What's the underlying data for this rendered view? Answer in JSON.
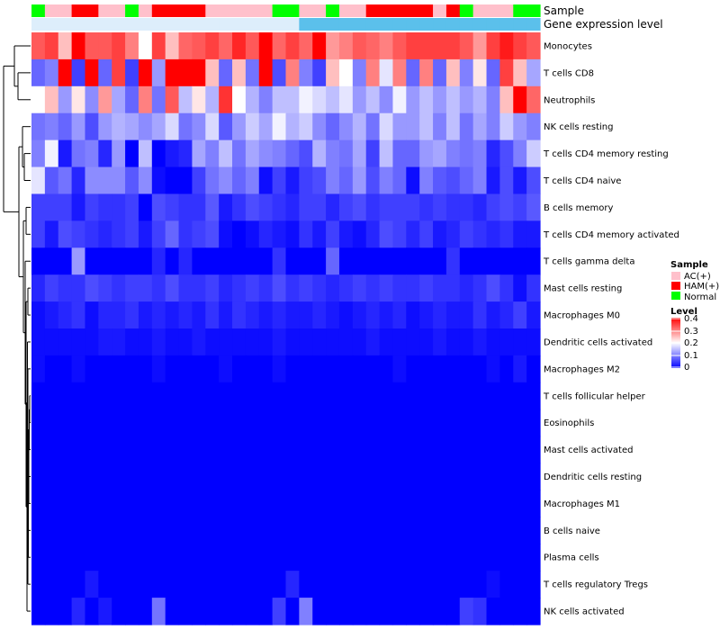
{
  "chart_data": {
    "type": "heatmap",
    "title": "",
    "annotations": [
      {
        "label": "Sample",
        "values": [
          "Normal",
          "AC(+)",
          "AC(+)",
          "HAM(+)",
          "HAM(+)",
          "AC(+)",
          "AC(+)",
          "Normal",
          "AC(+)",
          "HAM(+)",
          "HAM(+)",
          "HAM(+)",
          "HAM(+)",
          "AC(+)",
          "AC(+)",
          "AC(+)",
          "AC(+)",
          "AC(+)",
          "Normal",
          "Normal",
          "AC(+)",
          "AC(+)",
          "Normal",
          "AC(+)",
          "AC(+)",
          "HAM(+)",
          "HAM(+)",
          "HAM(+)",
          "HAM(+)",
          "HAM(+)",
          "AC(+)",
          "HAM(+)",
          "Normal",
          "AC(+)",
          "AC(+)",
          "AC(+)",
          "Normal",
          "Normal"
        ]
      },
      {
        "label": "Gene expression level",
        "values": [
          "low",
          "low",
          "low",
          "low",
          "low",
          "low",
          "low",
          "low",
          "low",
          "low",
          "low",
          "low",
          "low",
          "low",
          "low",
          "low",
          "low",
          "low",
          "low",
          "low",
          "high",
          "high",
          "high",
          "high",
          "high",
          "high",
          "high",
          "high",
          "high",
          "high",
          "high",
          "high",
          "high",
          "high",
          "high",
          "high",
          "high",
          "high"
        ]
      }
    ],
    "rows": [
      "Monocytes",
      "T cells CD8",
      "Neutrophils",
      "NK cells resting",
      "T cells CD4 memory resting",
      "T cells CD4 naive",
      "B cells memory",
      "T cells CD4 memory activated",
      "T cells gamma delta",
      "Mast cells resting",
      "Macrophages M0",
      "Dendritic cells activated",
      "Macrophages M2",
      "T cells follicular helper",
      "Eosinophils",
      "Mast cells activated",
      "Dendritic cells resting",
      "Macrophages M1",
      "B cells naive",
      "Plasma cells",
      "T cells regulatory  Tregs",
      "NK cells activated"
    ],
    "values": [
      [
        0.33,
        0.35,
        0.25,
        0.4,
        0.33,
        0.33,
        0.35,
        0.3,
        0.2,
        0.35,
        0.25,
        0.32,
        0.33,
        0.35,
        0.32,
        0.37,
        0.33,
        0.4,
        0.32,
        0.35,
        0.32,
        0.4,
        0.28,
        0.3,
        0.33,
        0.32,
        0.3,
        0.33,
        0.35,
        0.35,
        0.35,
        0.35,
        0.33,
        0.28,
        0.35,
        0.38,
        0.35,
        0.33
      ],
      [
        0.08,
        0.1,
        0.4,
        0.05,
        0.4,
        0.08,
        0.35,
        0.05,
        0.4,
        0.12,
        0.4,
        0.4,
        0.4,
        0.25,
        0.08,
        0.25,
        0.09,
        0.4,
        0.06,
        0.3,
        0.1,
        0.05,
        0.25,
        0.2,
        0.1,
        0.3,
        0.18,
        0.3,
        0.08,
        0.3,
        0.08,
        0.25,
        0.1,
        0.22,
        0.08,
        0.35,
        0.25,
        0.13
      ],
      [
        0.2,
        0.25,
        0.12,
        0.22,
        0.11,
        0.28,
        0.13,
        0.08,
        0.3,
        0.09,
        0.33,
        0.15,
        0.22,
        0.14,
        0.36,
        0.2,
        0.14,
        0.1,
        0.15,
        0.15,
        0.19,
        0.17,
        0.15,
        0.18,
        0.12,
        0.15,
        0.11,
        0.19,
        0.12,
        0.15,
        0.12,
        0.15,
        0.12,
        0.14,
        0.1,
        0.25,
        0.4,
        0.32
      ],
      [
        0.09,
        0.1,
        0.08,
        0.12,
        0.06,
        0.12,
        0.14,
        0.13,
        0.11,
        0.13,
        0.17,
        0.09,
        0.11,
        0.17,
        0.07,
        0.12,
        0.16,
        0.13,
        0.19,
        0.14,
        0.16,
        0.11,
        0.08,
        0.11,
        0.14,
        0.09,
        0.17,
        0.12,
        0.12,
        0.15,
        0.1,
        0.15,
        0.09,
        0.13,
        0.1,
        0.16,
        0.12,
        0.1
      ],
      [
        0.1,
        0.19,
        0.02,
        0.09,
        0.1,
        0.03,
        0.12,
        0.0,
        0.15,
        0.0,
        0.02,
        0.03,
        0.13,
        0.1,
        0.15,
        0.09,
        0.13,
        0.11,
        0.1,
        0.08,
        0.06,
        0.14,
        0.1,
        0.09,
        0.13,
        0.05,
        0.15,
        0.08,
        0.08,
        0.12,
        0.13,
        0.1,
        0.09,
        0.1,
        0.03,
        0.06,
        0.1,
        0.16
      ],
      [
        0.18,
        0.07,
        0.09,
        0.03,
        0.11,
        0.11,
        0.11,
        0.07,
        0.11,
        0.01,
        0.0,
        0.0,
        0.05,
        0.09,
        0.11,
        0.08,
        0.1,
        0.01,
        0.05,
        0.02,
        0.05,
        0.06,
        0.1,
        0.08,
        0.12,
        0.06,
        0.1,
        0.08,
        0.01,
        0.1,
        0.07,
        0.06,
        0.08,
        0.1,
        0.02,
        0.06,
        0.02,
        0.06
      ],
      [
        0.05,
        0.05,
        0.05,
        0.02,
        0.05,
        0.04,
        0.04,
        0.05,
        0.0,
        0.06,
        0.05,
        0.04,
        0.04,
        0.07,
        0.02,
        0.04,
        0.06,
        0.05,
        0.04,
        0.03,
        0.05,
        0.05,
        0.03,
        0.05,
        0.06,
        0.04,
        0.05,
        0.05,
        0.05,
        0.04,
        0.05,
        0.04,
        0.04,
        0.03,
        0.05,
        0.06,
        0.05,
        0.07
      ],
      [
        0.05,
        0.02,
        0.06,
        0.05,
        0.04,
        0.03,
        0.04,
        0.05,
        0.02,
        0.05,
        0.08,
        0.04,
        0.05,
        0.06,
        0.01,
        0.0,
        0.01,
        0.03,
        0.02,
        0.01,
        0.04,
        0.02,
        0.05,
        0.02,
        0.01,
        0.03,
        0.06,
        0.05,
        0.03,
        0.05,
        0.02,
        0.03,
        0.05,
        0.04,
        0.03,
        0.04,
        0.02,
        0.02
      ],
      [
        0.0,
        0.0,
        0.0,
        0.12,
        0.0,
        0.0,
        0.0,
        0.0,
        0.0,
        0.03,
        0.0,
        0.03,
        0.0,
        0.0,
        0.0,
        0.0,
        0.0,
        0.0,
        0.04,
        0.0,
        0.0,
        0.0,
        0.08,
        0.0,
        0.0,
        0.0,
        0.0,
        0.0,
        0.0,
        0.0,
        0.0,
        0.04,
        0.0,
        0.0,
        0.0,
        0.0,
        0.0,
        0.0
      ],
      [
        0.03,
        0.05,
        0.04,
        0.04,
        0.06,
        0.05,
        0.04,
        0.05,
        0.05,
        0.04,
        0.06,
        0.04,
        0.04,
        0.05,
        0.03,
        0.04,
        0.05,
        0.04,
        0.06,
        0.04,
        0.05,
        0.04,
        0.03,
        0.04,
        0.05,
        0.04,
        0.05,
        0.04,
        0.04,
        0.05,
        0.04,
        0.04,
        0.03,
        0.04,
        0.06,
        0.04,
        0.01,
        0.04
      ],
      [
        0.01,
        0.02,
        0.03,
        0.04,
        0.01,
        0.03,
        0.03,
        0.04,
        0.02,
        0.03,
        0.02,
        0.03,
        0.02,
        0.04,
        0.02,
        0.04,
        0.03,
        0.02,
        0.03,
        0.02,
        0.02,
        0.03,
        0.02,
        0.01,
        0.02,
        0.03,
        0.02,
        0.03,
        0.01,
        0.02,
        0.03,
        0.02,
        0.02,
        0.04,
        0.02,
        0.03,
        0.05,
        0.02
      ],
      [
        0.01,
        0.01,
        0.01,
        0.01,
        0.01,
        0.02,
        0.02,
        0.01,
        0.01,
        0.02,
        0.01,
        0.01,
        0.02,
        0.01,
        0.01,
        0.01,
        0.01,
        0.01,
        0.02,
        0.01,
        0.01,
        0.01,
        0.01,
        0.01,
        0.01,
        0.02,
        0.01,
        0.01,
        0.01,
        0.01,
        0.02,
        0.01,
        0.01,
        0.02,
        0.01,
        0.01,
        0.01,
        0.01
      ],
      [
        0.01,
        0.0,
        0.0,
        0.01,
        0.0,
        0.0,
        0.0,
        0.0,
        0.0,
        0.01,
        0.0,
        0.0,
        0.0,
        0.0,
        0.01,
        0.0,
        0.0,
        0.0,
        0.01,
        0.0,
        0.0,
        0.0,
        0.0,
        0.0,
        0.0,
        0.0,
        0.0,
        0.01,
        0.0,
        0.0,
        0.0,
        0.0,
        0.0,
        0.0,
        0.01,
        0.0,
        0.02,
        0.0
      ],
      [
        0.0,
        0.0,
        0.0,
        0.0,
        0.0,
        0.0,
        0.0,
        0.0,
        0.0,
        0.0,
        0.0,
        0.0,
        0.0,
        0.0,
        0.0,
        0.0,
        0.0,
        0.0,
        0.0,
        0.0,
        0.0,
        0.0,
        0.0,
        0.0,
        0.0,
        0.0,
        0.0,
        0.0,
        0.0,
        0.0,
        0.0,
        0.0,
        0.0,
        0.0,
        0.0,
        0.0,
        0.0,
        0.0
      ],
      [
        0.0,
        0.0,
        0.0,
        0.0,
        0.0,
        0.0,
        0.0,
        0.0,
        0.0,
        0.0,
        0.0,
        0.0,
        0.0,
        0.0,
        0.0,
        0.0,
        0.0,
        0.0,
        0.0,
        0.0,
        0.0,
        0.0,
        0.0,
        0.0,
        0.0,
        0.0,
        0.0,
        0.0,
        0.0,
        0.0,
        0.0,
        0.0,
        0.0,
        0.0,
        0.0,
        0.0,
        0.0,
        0.0
      ],
      [
        0.0,
        0.0,
        0.0,
        0.0,
        0.0,
        0.0,
        0.0,
        0.0,
        0.0,
        0.0,
        0.0,
        0.0,
        0.0,
        0.0,
        0.0,
        0.0,
        0.0,
        0.0,
        0.0,
        0.0,
        0.0,
        0.0,
        0.0,
        0.0,
        0.0,
        0.0,
        0.0,
        0.0,
        0.0,
        0.0,
        0.0,
        0.0,
        0.0,
        0.0,
        0.0,
        0.0,
        0.0,
        0.0
      ],
      [
        0.0,
        0.0,
        0.0,
        0.0,
        0.0,
        0.0,
        0.0,
        0.0,
        0.0,
        0.0,
        0.0,
        0.0,
        0.0,
        0.0,
        0.0,
        0.0,
        0.0,
        0.0,
        0.0,
        0.0,
        0.0,
        0.0,
        0.0,
        0.0,
        0.0,
        0.0,
        0.0,
        0.0,
        0.0,
        0.0,
        0.0,
        0.0,
        0.0,
        0.0,
        0.0,
        0.0,
        0.0,
        0.0
      ],
      [
        0.0,
        0.0,
        0.0,
        0.0,
        0.0,
        0.0,
        0.0,
        0.0,
        0.0,
        0.0,
        0.0,
        0.0,
        0.0,
        0.0,
        0.0,
        0.0,
        0.0,
        0.0,
        0.0,
        0.0,
        0.0,
        0.0,
        0.0,
        0.0,
        0.0,
        0.0,
        0.0,
        0.0,
        0.0,
        0.0,
        0.0,
        0.0,
        0.0,
        0.0,
        0.0,
        0.0,
        0.0,
        0.0
      ],
      [
        0.0,
        0.0,
        0.0,
        0.0,
        0.0,
        0.0,
        0.0,
        0.0,
        0.0,
        0.0,
        0.0,
        0.0,
        0.0,
        0.0,
        0.0,
        0.0,
        0.0,
        0.0,
        0.0,
        0.0,
        0.0,
        0.0,
        0.0,
        0.0,
        0.0,
        0.0,
        0.0,
        0.0,
        0.0,
        0.0,
        0.0,
        0.0,
        0.0,
        0.0,
        0.0,
        0.0,
        0.0,
        0.0
      ],
      [
        0.0,
        0.0,
        0.0,
        0.0,
        0.0,
        0.0,
        0.0,
        0.0,
        0.0,
        0.0,
        0.0,
        0.0,
        0.0,
        0.0,
        0.0,
        0.0,
        0.0,
        0.0,
        0.0,
        0.0,
        0.0,
        0.0,
        0.0,
        0.0,
        0.0,
        0.0,
        0.0,
        0.0,
        0.0,
        0.0,
        0.0,
        0.0,
        0.0,
        0.0,
        0.0,
        0.0,
        0.0,
        0.0
      ],
      [
        0.0,
        0.0,
        0.0,
        0.0,
        0.02,
        0.0,
        0.0,
        0.0,
        0.0,
        0.0,
        0.0,
        0.0,
        0.0,
        0.0,
        0.0,
        0.0,
        0.0,
        0.0,
        0.0,
        0.03,
        0.0,
        0.0,
        0.0,
        0.0,
        0.0,
        0.0,
        0.0,
        0.0,
        0.0,
        0.0,
        0.0,
        0.0,
        0.0,
        0.0,
        0.01,
        0.0,
        0.0,
        0.0
      ],
      [
        0.0,
        0.0,
        0.0,
        0.03,
        0.0,
        0.02,
        0.0,
        0.0,
        0.0,
        0.09,
        0.0,
        0.0,
        0.0,
        0.0,
        0.0,
        0.0,
        0.0,
        0.0,
        0.05,
        0.0,
        0.1,
        0.0,
        0.0,
        0.0,
        0.0,
        0.0,
        0.0,
        0.0,
        0.0,
        0.0,
        0.0,
        0.0,
        0.05,
        0.04,
        0.0,
        0.0,
        0.0,
        0.0
      ]
    ],
    "color_scale": {
      "min": 0,
      "max": 0.4,
      "stops": [
        {
          "value": 0,
          "color": "#0000FF"
        },
        {
          "value": 0.2,
          "color": "#FFFFFF"
        },
        {
          "value": 0.4,
          "color": "#FF0000"
        }
      ]
    },
    "legend": {
      "position": "right",
      "sample": {
        "title": "Sample",
        "entries": [
          {
            "label": "AC(+)",
            "color": "#FFC0CB"
          },
          {
            "label": "HAM(+)",
            "color": "#FF0000"
          },
          {
            "label": "Normal",
            "color": "#00FF00"
          }
        ]
      },
      "level": {
        "title": "Level",
        "ticks": [
          "0.4",
          "0.3",
          "0.2",
          "0.1",
          "0"
        ]
      }
    },
    "expression_colors": {
      "low": "#DDEEFB",
      "high": "#5BC0EB"
    },
    "dendrogram": "row-clustering"
  }
}
